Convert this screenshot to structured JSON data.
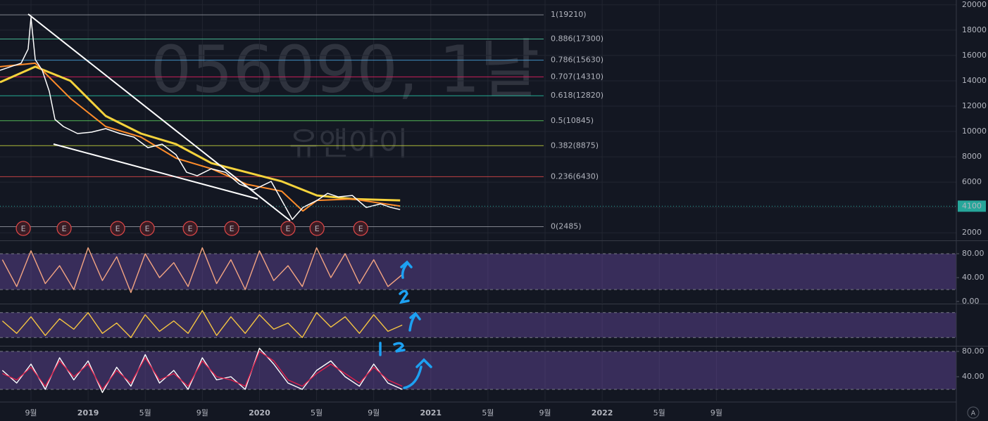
{
  "chart_data": [
    {
      "type": "line",
      "watermark": "056090, 1날",
      "watermark_subtitle": "유앤아이",
      "xlim": [
        5.83,
        72.8
      ],
      "xticks": [
        {
          "value": 8,
          "label": "9월"
        },
        {
          "value": 12,
          "label": "2019"
        },
        {
          "value": 16,
          "label": "5월"
        },
        {
          "value": 20,
          "label": "9월"
        },
        {
          "value": 24,
          "label": "2020"
        },
        {
          "value": 28,
          "label": "5월"
        },
        {
          "value": 32,
          "label": "9월"
        },
        {
          "value": 36,
          "label": "2021"
        },
        {
          "value": 40,
          "label": "5월"
        },
        {
          "value": 44,
          "label": "9월"
        },
        {
          "value": 48,
          "label": "2022"
        },
        {
          "value": 52,
          "label": "5월"
        },
        {
          "value": 56,
          "label": "9월"
        }
      ],
      "ylim": [
        1400,
        20380
      ],
      "yticks": [
        2000,
        4000,
        6000,
        8000,
        10000,
        12000,
        14000,
        16000,
        18000,
        20000
      ],
      "grid": true,
      "current_price": 4100,
      "current_price_color": "#26a69a",
      "fib_levels": [
        {
          "value": 19210,
          "label": "1(19210)",
          "color": "#9598a1"
        },
        {
          "value": 17300,
          "label": "0.886(17300)",
          "color": "#4dd0a1"
        },
        {
          "value": 15630,
          "label": "0.786(15630)",
          "color": "#4aa3df"
        },
        {
          "value": 14310,
          "label": "0.707(14310)",
          "color": "#e91e63"
        },
        {
          "value": 12820,
          "label": "0.618(12820)",
          "color": "#26c6a6"
        },
        {
          "value": 10845,
          "label": "0.5(10845)",
          "color": "#5fd35f"
        },
        {
          "value": 8875,
          "label": "0.382(8875)",
          "color": "#c8d83c"
        },
        {
          "value": 6430,
          "label": "0.236(6430)",
          "color": "#e04848"
        },
        {
          "value": 2485,
          "label": "0(2485)",
          "color": "#9598a1"
        }
      ],
      "events": [
        {
          "x": 7.46,
          "label": "E"
        },
        {
          "x": 10.32,
          "label": "E"
        },
        {
          "x": 14.07,
          "label": "E"
        },
        {
          "x": 16.14,
          "label": "E"
        },
        {
          "x": 19.15,
          "label": "E"
        },
        {
          "x": 22.06,
          "label": "E"
        },
        {
          "x": 26.0,
          "label": "E"
        },
        {
          "x": 28.03,
          "label": "E"
        },
        {
          "x": 31.09,
          "label": "E"
        }
      ],
      "series": [
        {
          "color": "#f5d33c",
          "width": 3,
          "x": [
            5.83,
            8.3,
            10.76,
            13.23,
            15.7,
            18.16,
            20.63,
            23.1,
            25.56,
            28.03,
            30.5,
            33.85
          ],
          "values": [
            13889,
            15111,
            14000,
            11222,
            9833,
            9000,
            7500,
            6778,
            6056,
            4944,
            4667,
            4556
          ]
        },
        {
          "color": "#ff8c2a",
          "width": 2,
          "x": [
            5.83,
            8.3,
            10.76,
            13.23,
            15.7,
            18.16,
            20.63,
            23.1,
            25.56,
            27.04,
            28.03,
            30.5,
            33.85
          ],
          "values": [
            15111,
            15389,
            12611,
            10389,
            9556,
            7889,
            7056,
            5833,
            5278,
            3722,
            4556,
            4667,
            4111
          ]
        },
        {
          "color": "#ffffff",
          "width": 1.5,
          "x": [
            5.83,
            6.57,
            7.31,
            7.8,
            8.0,
            8.3,
            8.79,
            9.28,
            9.68,
            10.27,
            11.26,
            12.24,
            13.23,
            14.22,
            15.2,
            16.19,
            17.18,
            18.16,
            18.9,
            19.64,
            20.63,
            21.62,
            22.6,
            23.59,
            24.82,
            25.56,
            26.3,
            27.04,
            28.03,
            28.77,
            29.51,
            30.5,
            31.48,
            32.47,
            33.21,
            33.85
          ],
          "values": [
            14833,
            15111,
            15389,
            16500,
            19000,
            15667,
            14833,
            13167,
            10944,
            10389,
            9833,
            9944,
            10222,
            9833,
            9556,
            8722,
            9000,
            8167,
            6778,
            6500,
            7056,
            6778,
            5833,
            5389,
            6056,
            4556,
            3056,
            4000,
            4556,
            5111,
            4833,
            4944,
            4000,
            4278,
            4000,
            3833
          ]
        }
      ]
    },
    {
      "type": "oscillator",
      "xlim": [
        5.83,
        72.8
      ],
      "ylim": [
        -2.4,
        101.2
      ],
      "yticks": [
        {
          "value": 80,
          "label": "80.00"
        },
        {
          "value": 40,
          "label": "40.00"
        },
        {
          "value": 0,
          "label": "0.00"
        }
      ],
      "band": [
        20,
        80
      ],
      "x": [
        6,
        7,
        8,
        9,
        10,
        11,
        12,
        13,
        14,
        15,
        16,
        17,
        18,
        19,
        20,
        21,
        22,
        23,
        24,
        25,
        26,
        27,
        28,
        29,
        30,
        31,
        32,
        33,
        34
      ],
      "series": [
        {
          "color": "#f4a582",
          "values": [
            70,
            25,
            85,
            30,
            60,
            20,
            90,
            35,
            75,
            15,
            80,
            40,
            65,
            25,
            90,
            30,
            70,
            20,
            85,
            35,
            60,
            25,
            90,
            40,
            80,
            30,
            70,
            25,
            45
          ]
        }
      ]
    },
    {
      "type": "oscillator",
      "xlim": [
        5.83,
        72.8
      ],
      "ylim": [
        0,
        100
      ],
      "yticks": [],
      "band": [
        20,
        80
      ],
      "x": [
        6,
        7,
        8,
        9,
        10,
        11,
        12,
        13,
        14,
        15,
        16,
        17,
        18,
        19,
        20,
        21,
        22,
        23,
        24,
        25,
        26,
        27,
        28,
        29,
        30,
        31,
        32,
        33,
        34
      ],
      "series": [
        {
          "color": "#f5c542",
          "values": [
            60,
            30,
            70,
            25,
            65,
            40,
            80,
            30,
            55,
            20,
            75,
            35,
            60,
            30,
            85,
            25,
            70,
            30,
            75,
            40,
            55,
            20,
            80,
            45,
            70,
            30,
            75,
            35,
            50
          ]
        }
      ]
    },
    {
      "type": "oscillator",
      "xlim": [
        5.83,
        72.8
      ],
      "ylim": [
        2.2,
        87.8
      ],
      "yticks": [
        {
          "value": 80,
          "label": "80.00"
        },
        {
          "value": 40,
          "label": "40.00"
        }
      ],
      "band": [
        20,
        80
      ],
      "x": [
        6,
        7,
        8,
        9,
        10,
        11,
        12,
        13,
        14,
        15,
        16,
        17,
        18,
        19,
        20,
        21,
        22,
        23,
        24,
        25,
        26,
        27,
        28,
        29,
        30,
        31,
        32,
        33,
        34
      ],
      "series": [
        {
          "color": "#ffffff",
          "values": [
            50,
            30,
            60,
            20,
            70,
            35,
            65,
            15,
            55,
            25,
            75,
            30,
            50,
            20,
            70,
            35,
            40,
            20,
            85,
            60,
            30,
            20,
            50,
            65,
            40,
            25,
            60,
            30,
            20
          ]
        },
        {
          "color": "#e0204a",
          "values": [
            45,
            35,
            55,
            25,
            65,
            40,
            60,
            20,
            50,
            30,
            70,
            35,
            45,
            25,
            65,
            40,
            35,
            25,
            80,
            65,
            35,
            25,
            45,
            60,
            45,
            30,
            55,
            35,
            25
          ]
        }
      ]
    }
  ],
  "ui": {
    "auto_button": "A"
  }
}
